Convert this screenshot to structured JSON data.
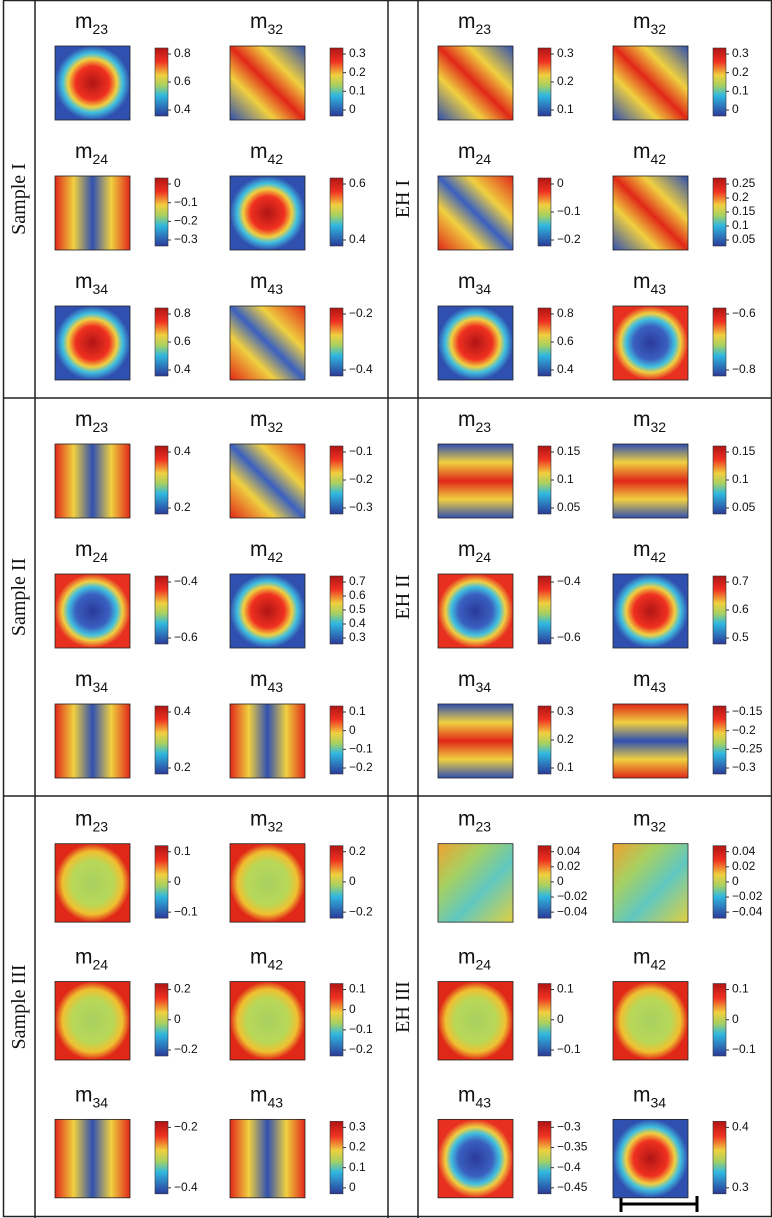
{
  "panels": [
    {
      "label": "Sample I",
      "plots": [
        {
          "symbol": "m",
          "index": "23",
          "ticks": [
            "0.8",
            "0.6",
            "0.4"
          ]
        },
        {
          "symbol": "m",
          "index": "32",
          "ticks": [
            "0.3",
            "0.2",
            "0.1",
            "0"
          ]
        },
        {
          "symbol": "m",
          "index": "24",
          "ticks": [
            "0",
            "−0.1",
            "−0.2",
            "−0.3"
          ]
        },
        {
          "symbol": "m",
          "index": "42",
          "ticks": [
            "0.6",
            "0.4"
          ]
        },
        {
          "symbol": "m",
          "index": "34",
          "ticks": [
            "0.8",
            "0.6",
            "0.4"
          ]
        },
        {
          "symbol": "m",
          "index": "43",
          "ticks": [
            "−0.2",
            "−0.4"
          ]
        }
      ]
    },
    {
      "label": "EH I",
      "plots": [
        {
          "symbol": "m",
          "index": "23",
          "ticks": [
            "0.3",
            "0.2",
            "0.1"
          ]
        },
        {
          "symbol": "m",
          "index": "32",
          "ticks": [
            "0.3",
            "0.2",
            "0.1",
            "0"
          ]
        },
        {
          "symbol": "m",
          "index": "24",
          "ticks": [
            "0",
            "−0.1",
            "−0.2"
          ]
        },
        {
          "symbol": "m",
          "index": "42",
          "ticks": [
            "0.25",
            "0.2",
            "0.15",
            "0.1",
            "0.05"
          ]
        },
        {
          "symbol": "m",
          "index": "34",
          "ticks": [
            "0.8",
            "0.6",
            "0.4"
          ]
        },
        {
          "symbol": "m",
          "index": "43",
          "ticks": [
            "−0.6",
            "−0.8"
          ]
        }
      ]
    },
    {
      "label": "Sample II",
      "plots": [
        {
          "symbol": "m",
          "index": "23",
          "ticks": [
            "0.4",
            "0.2"
          ]
        },
        {
          "symbol": "m",
          "index": "32",
          "ticks": [
            "−0.1",
            "−0.2",
            "−0.3"
          ]
        },
        {
          "symbol": "m",
          "index": "24",
          "ticks": [
            "−0.4",
            "−0.6"
          ]
        },
        {
          "symbol": "m",
          "index": "42",
          "ticks": [
            "0.7",
            "0.6",
            "0.5",
            "0.4",
            "0.3"
          ]
        },
        {
          "symbol": "m",
          "index": "34",
          "ticks": [
            "0.4",
            "0.2"
          ]
        },
        {
          "symbol": "m",
          "index": "43",
          "ticks": [
            "0.1",
            "0",
            "−0.1",
            "−0.2"
          ]
        }
      ]
    },
    {
      "label": "EH  II",
      "plots": [
        {
          "symbol": "m",
          "index": "23",
          "ticks": [
            "0.15",
            "0.1",
            "0.05"
          ]
        },
        {
          "symbol": "m",
          "index": "32",
          "ticks": [
            "0.15",
            "0.1",
            "0.05"
          ]
        },
        {
          "symbol": "m",
          "index": "24",
          "ticks": [
            "−0.4",
            "−0.6"
          ]
        },
        {
          "symbol": "m",
          "index": "42",
          "ticks": [
            "0.7",
            "0.6",
            "0.5"
          ]
        },
        {
          "symbol": "m",
          "index": "34",
          "ticks": [
            "0.3",
            "0.2",
            "0.1"
          ]
        },
        {
          "symbol": "m",
          "index": "43",
          "ticks": [
            "−0.15",
            "−0.2",
            "−0.25",
            "−0.3"
          ]
        }
      ]
    },
    {
      "label": "Sample III",
      "plots": [
        {
          "symbol": "m",
          "index": "23",
          "ticks": [
            "0.1",
            "0",
            "−0.1"
          ]
        },
        {
          "symbol": "m",
          "index": "32",
          "ticks": [
            "0.2",
            "0",
            "−0.2"
          ]
        },
        {
          "symbol": "m",
          "index": "24",
          "ticks": [
            "0.2",
            "0",
            "−0.2"
          ]
        },
        {
          "symbol": "m",
          "index": "42",
          "ticks": [
            "0.1",
            "0",
            "−0.1",
            "−0.2"
          ]
        },
        {
          "symbol": "m",
          "index": "34",
          "ticks": [
            "−0.2",
            "−0.4"
          ]
        },
        {
          "symbol": "m",
          "index": "43",
          "ticks": [
            "0.3",
            "0.2",
            "0.1",
            "0"
          ]
        }
      ]
    },
    {
      "label": "EH III",
      "plots": [
        {
          "symbol": "m",
          "index": "23",
          "ticks": [
            "0.04",
            "0.02",
            "0",
            "−0.02",
            "−0.04"
          ]
        },
        {
          "symbol": "m",
          "index": "32",
          "ticks": [
            "0.04",
            "0.02",
            "0",
            "−0.02",
            "−0.04"
          ]
        },
        {
          "symbol": "m",
          "index": "24",
          "ticks": [
            "0.1",
            "0",
            "−0.1"
          ]
        },
        {
          "symbol": "m",
          "index": "42",
          "ticks": [
            "0.1",
            "0",
            "−0.1"
          ]
        },
        {
          "symbol": "m",
          "index": "43",
          "ticks": [
            "−0.3",
            "−0.35",
            "−0.4",
            "−0.45"
          ]
        },
        {
          "symbol": "m",
          "index": "34",
          "ticks": [
            "0.4",
            "0.3"
          ]
        }
      ]
    }
  ]
}
